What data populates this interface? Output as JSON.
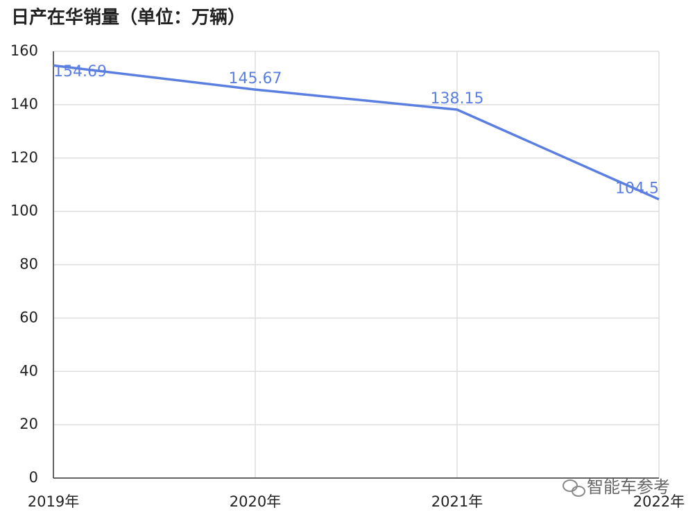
{
  "chart_data": {
    "type": "line",
    "title": "日产在华销量（单位：万辆）",
    "categories": [
      "2019年",
      "2020年",
      "2021年",
      "2022年"
    ],
    "series": [
      {
        "name": "日产在华销量",
        "color": "#5b7fe0",
        "values": [
          154.69,
          145.67,
          138.15,
          104.5
        ]
      }
    ],
    "ylim": [
      0,
      160
    ],
    "yticks": [
      0,
      20,
      40,
      60,
      80,
      100,
      120,
      140,
      160
    ],
    "grid": true,
    "watermark": "智能车参考"
  }
}
